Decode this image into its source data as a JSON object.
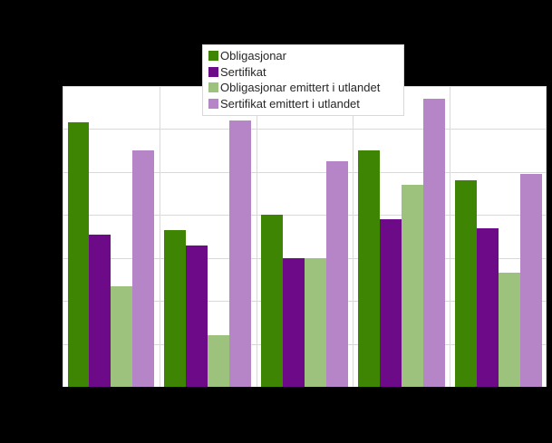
{
  "chart_data": {
    "type": "bar",
    "title": "",
    "xlabel": "",
    "ylabel": "",
    "categories": [
      "",
      "",
      "",
      "",
      ""
    ],
    "x_tick_labels_visible": false,
    "y_tick_labels_visible": false,
    "ylim": [
      0,
      7
    ],
    "gridline_step": 1,
    "grid": true,
    "legend_position": "top-center",
    "series": [
      {
        "name": "Obligasjonar",
        "color": "#3e8504",
        "values": [
          6.15,
          3.65,
          4.0,
          5.5,
          4.8
        ]
      },
      {
        "name": "Sertifikat",
        "color": "#6c0a87",
        "values": [
          3.55,
          3.3,
          3.0,
          3.9,
          3.7
        ]
      },
      {
        "name": "Obligasjonar emittert i utlandet",
        "color": "#9cc27e",
        "values": [
          2.35,
          1.2,
          3.0,
          4.7,
          2.65
        ]
      },
      {
        "name": "Sertifikat emittert i utlandet",
        "color": "#b685c7",
        "values": [
          5.5,
          6.2,
          5.25,
          6.7,
          4.95
        ]
      }
    ]
  },
  "colors": {
    "background": "#000000",
    "plot_background": "#ffffff",
    "gridline": "#d9d9d9",
    "legend_border": "#d9d9d9",
    "legend_text": "#262626"
  }
}
